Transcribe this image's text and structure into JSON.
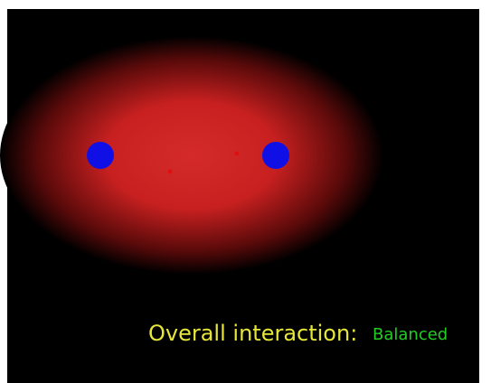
{
  "status": {
    "label": "Overall interaction:",
    "value": "Balanced"
  }
}
